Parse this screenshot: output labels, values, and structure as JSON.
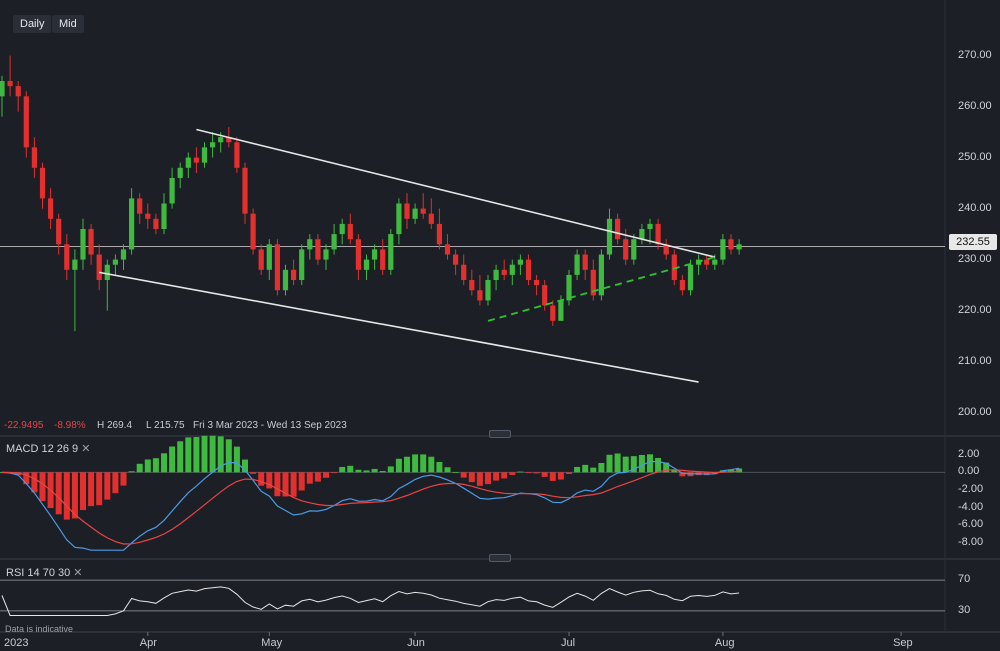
{
  "toolbar": {
    "daily": "Daily",
    "mid": "Mid"
  },
  "stats": {
    "change": "-22.9495",
    "change_pct": "-8.98%",
    "high": "H 269.4",
    "low": "L 215.75",
    "range": "Fri 3 Mar 2023 - Wed 13 Sep 2023"
  },
  "last_price": "232.55",
  "macd": {
    "label": "MACD",
    "params": "12 26 9"
  },
  "rsi": {
    "label": "RSI",
    "params": "14 70 30"
  },
  "footer": {
    "note": "Data is indicative"
  },
  "colors": {
    "up": "#3fb93f",
    "down": "#e3302e",
    "macd": "#4a9be6",
    "signal": "#e84545",
    "trend": "#e6e6e6",
    "support": "#2fc42f"
  },
  "chart_data": {
    "type": "candlestick",
    "price_axis": {
      "ticks": [
        270,
        260,
        250,
        240,
        230,
        220,
        210,
        200
      ],
      "labels": [
        "270.00",
        "260.00",
        "250.00",
        "240.00",
        "230.00",
        "220.00",
        "210.00",
        "200.00"
      ],
      "range": [
        197,
        275
      ]
    },
    "x_axis": {
      "labels": [
        "2023",
        "Apr",
        "May",
        "Jun",
        "Jul",
        "Aug",
        "Sep"
      ]
    },
    "candles": [
      [
        262,
        266,
        258,
        265
      ],
      [
        265,
        270,
        262,
        264
      ],
      [
        264,
        265,
        259,
        262
      ],
      [
        262,
        263,
        250,
        252
      ],
      [
        252,
        254,
        246,
        248
      ],
      [
        248,
        249,
        240,
        242
      ],
      [
        242,
        244,
        236,
        238
      ],
      [
        238,
        239,
        231,
        233
      ],
      [
        233,
        235,
        226,
        228
      ],
      [
        228,
        232,
        216,
        230
      ],
      [
        230,
        238,
        228,
        236
      ],
      [
        236,
        237,
        229,
        231
      ],
      [
        231,
        233,
        224,
        226
      ],
      [
        226,
        230,
        220,
        229
      ],
      [
        229,
        231,
        227,
        230
      ],
      [
        230,
        233,
        228,
        232
      ],
      [
        232,
        244,
        231,
        242
      ],
      [
        242,
        243,
        237,
        239
      ],
      [
        239,
        241,
        236,
        238
      ],
      [
        238,
        239,
        235,
        236
      ],
      [
        236,
        243,
        235,
        241
      ],
      [
        241,
        248,
        240,
        246
      ],
      [
        246,
        249,
        244,
        248
      ],
      [
        248,
        251,
        246,
        250
      ],
      [
        250,
        252,
        247,
        249
      ],
      [
        249,
        253,
        248,
        252
      ],
      [
        252,
        255,
        250,
        253
      ],
      [
        253,
        255,
        251,
        254
      ],
      [
        254,
        256,
        252,
        253
      ],
      [
        253,
        254,
        247,
        248
      ],
      [
        248,
        249,
        237,
        239
      ],
      [
        239,
        240,
        231,
        232
      ],
      [
        232,
        233,
        227,
        228
      ],
      [
        228,
        234,
        226,
        233
      ],
      [
        233,
        234,
        223,
        224
      ],
      [
        224,
        229,
        223,
        228
      ],
      [
        228,
        230,
        225,
        226
      ],
      [
        226,
        233,
        225,
        232
      ],
      [
        232,
        235,
        230,
        234
      ],
      [
        234,
        235,
        229,
        230
      ],
      [
        230,
        233,
        228,
        232
      ],
      [
        232,
        237,
        231,
        235
      ],
      [
        235,
        238,
        233,
        237
      ],
      [
        237,
        239,
        233,
        234
      ],
      [
        234,
        235,
        226,
        228
      ],
      [
        228,
        231,
        226,
        230
      ],
      [
        230,
        233,
        228,
        232
      ],
      [
        232,
        234,
        227,
        228
      ],
      [
        228,
        236,
        227,
        235
      ],
      [
        235,
        242,
        233,
        241
      ],
      [
        241,
        243,
        236,
        238
      ],
      [
        238,
        241,
        237,
        240
      ],
      [
        240,
        243,
        238,
        239
      ],
      [
        239,
        242,
        236,
        237
      ],
      [
        237,
        240,
        232,
        233
      ],
      [
        233,
        235,
        230,
        231
      ],
      [
        231,
        232,
        227,
        229
      ],
      [
        229,
        231,
        225,
        226
      ],
      [
        226,
        228,
        223,
        224
      ],
      [
        224,
        227,
        221,
        222
      ],
      [
        222,
        227,
        221,
        226
      ],
      [
        226,
        229,
        224,
        228
      ],
      [
        228,
        230,
        226,
        227
      ],
      [
        227,
        230,
        225,
        229
      ],
      [
        229,
        231,
        227,
        230
      ],
      [
        230,
        231,
        225,
        226
      ],
      [
        226,
        227,
        223,
        225
      ],
      [
        225,
        226,
        220,
        221
      ],
      [
        221,
        222,
        217,
        218
      ],
      [
        218,
        223,
        218,
        222
      ],
      [
        222,
        228,
        221,
        227
      ],
      [
        227,
        232,
        226,
        231
      ],
      [
        231,
        232,
        226,
        228
      ],
      [
        228,
        230,
        222,
        223
      ],
      [
        223,
        232,
        222,
        231
      ],
      [
        231,
        240,
        230,
        238
      ],
      [
        238,
        239,
        233,
        234
      ],
      [
        234,
        236,
        229,
        230
      ],
      [
        230,
        235,
        229,
        234
      ],
      [
        234,
        237,
        233,
        236
      ],
      [
        236,
        238,
        233,
        237
      ],
      [
        237,
        238,
        232,
        233
      ],
      [
        233,
        234,
        230,
        231
      ],
      [
        231,
        232,
        225,
        226
      ],
      [
        226,
        227,
        223,
        224
      ],
      [
        224,
        230,
        223,
        229
      ],
      [
        229,
        231,
        227,
        230
      ],
      [
        230,
        231,
        228,
        229
      ],
      [
        229,
        231,
        228,
        230
      ],
      [
        230,
        235,
        229,
        234
      ],
      [
        234,
        235,
        231,
        232
      ],
      [
        232,
        234,
        231,
        233
      ]
    ],
    "last_price": 232.55,
    "trendlines": [
      {
        "kind": "resistance",
        "from": [
          24,
          255.5
        ],
        "to": [
          88,
          230.5
        ]
      },
      {
        "kind": "support-channel",
        "from": [
          12,
          227.5
        ],
        "to": [
          86,
          206
        ]
      },
      {
        "kind": "support-dashed",
        "from": [
          60,
          218
        ],
        "to": [
          88,
          230.5
        ]
      }
    ],
    "macd": {
      "ticks": [
        2,
        0,
        -2,
        -4,
        -6,
        -8
      ],
      "labels": [
        "2.00",
        "0.00",
        "-2.00",
        "-4.00",
        "-6.00",
        "-8.00"
      ],
      "range": [
        -9,
        3.2
      ]
    },
    "rsi": {
      "ticks": [
        70,
        30
      ],
      "labels": [
        "70",
        "30"
      ],
      "range": [
        22,
        78
      ]
    }
  }
}
